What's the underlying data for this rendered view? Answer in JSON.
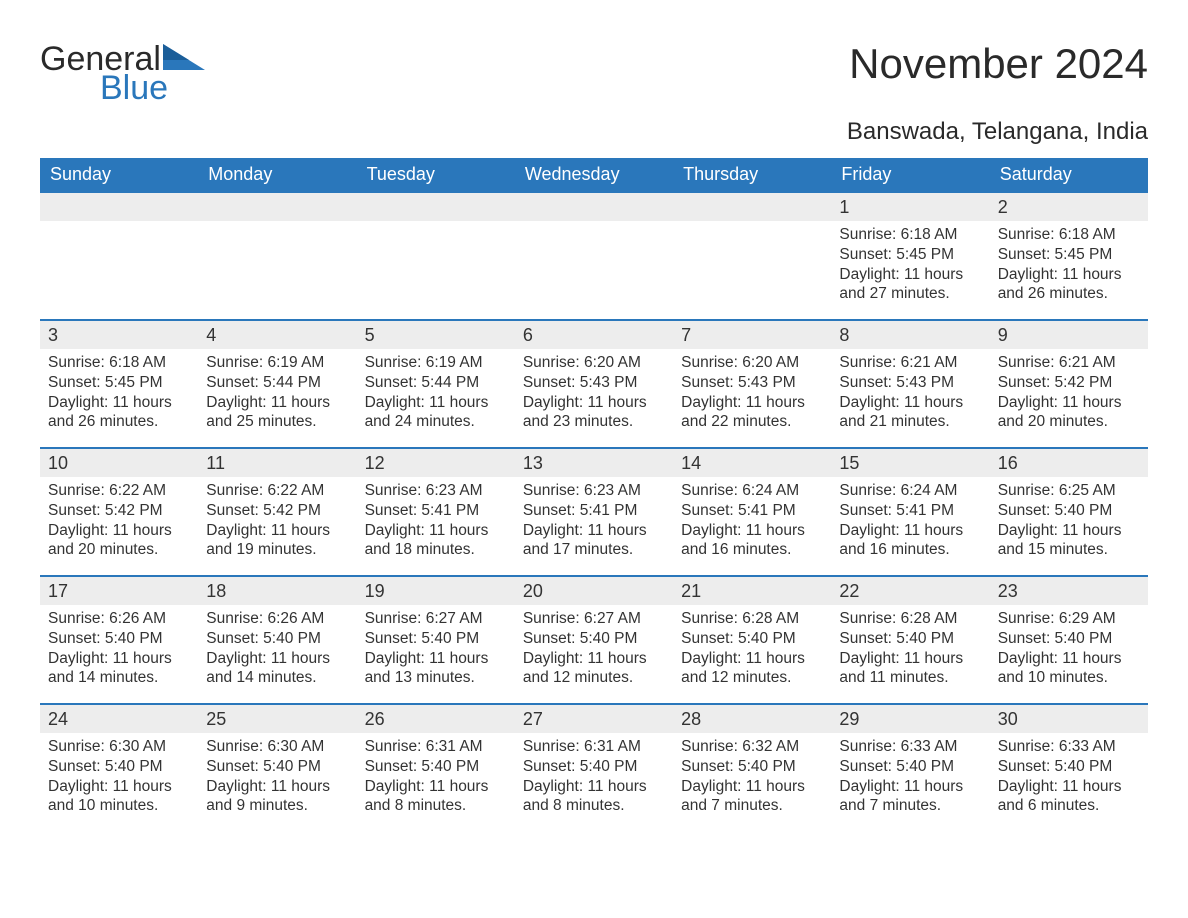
{
  "colors": {
    "brand_blue": "#2a77bb",
    "header_blue": "#2a77bb",
    "daynum_bg": "#ededed",
    "row_border_blue": "#2a77bb",
    "text": "#333333",
    "background": "#ffffff"
  },
  "logo": {
    "word1": "General",
    "word2": "Blue"
  },
  "title": "November 2024",
  "location": "Banswada, Telangana, India",
  "day_headers": [
    "Sunday",
    "Monday",
    "Tuesday",
    "Wednesday",
    "Thursday",
    "Friday",
    "Saturday"
  ],
  "weeks": [
    [
      null,
      null,
      null,
      null,
      null,
      {
        "n": "1",
        "sunrise": "Sunrise: 6:18 AM",
        "sunset": "Sunset: 5:45 PM",
        "daylight": "Daylight: 11 hours and 27 minutes."
      },
      {
        "n": "2",
        "sunrise": "Sunrise: 6:18 AM",
        "sunset": "Sunset: 5:45 PM",
        "daylight": "Daylight: 11 hours and 26 minutes."
      }
    ],
    [
      {
        "n": "3",
        "sunrise": "Sunrise: 6:18 AM",
        "sunset": "Sunset: 5:45 PM",
        "daylight": "Daylight: 11 hours and 26 minutes."
      },
      {
        "n": "4",
        "sunrise": "Sunrise: 6:19 AM",
        "sunset": "Sunset: 5:44 PM",
        "daylight": "Daylight: 11 hours and 25 minutes."
      },
      {
        "n": "5",
        "sunrise": "Sunrise: 6:19 AM",
        "sunset": "Sunset: 5:44 PM",
        "daylight": "Daylight: 11 hours and 24 minutes."
      },
      {
        "n": "6",
        "sunrise": "Sunrise: 6:20 AM",
        "sunset": "Sunset: 5:43 PM",
        "daylight": "Daylight: 11 hours and 23 minutes."
      },
      {
        "n": "7",
        "sunrise": "Sunrise: 6:20 AM",
        "sunset": "Sunset: 5:43 PM",
        "daylight": "Daylight: 11 hours and 22 minutes."
      },
      {
        "n": "8",
        "sunrise": "Sunrise: 6:21 AM",
        "sunset": "Sunset: 5:43 PM",
        "daylight": "Daylight: 11 hours and 21 minutes."
      },
      {
        "n": "9",
        "sunrise": "Sunrise: 6:21 AM",
        "sunset": "Sunset: 5:42 PM",
        "daylight": "Daylight: 11 hours and 20 minutes."
      }
    ],
    [
      {
        "n": "10",
        "sunrise": "Sunrise: 6:22 AM",
        "sunset": "Sunset: 5:42 PM",
        "daylight": "Daylight: 11 hours and 20 minutes."
      },
      {
        "n": "11",
        "sunrise": "Sunrise: 6:22 AM",
        "sunset": "Sunset: 5:42 PM",
        "daylight": "Daylight: 11 hours and 19 minutes."
      },
      {
        "n": "12",
        "sunrise": "Sunrise: 6:23 AM",
        "sunset": "Sunset: 5:41 PM",
        "daylight": "Daylight: 11 hours and 18 minutes."
      },
      {
        "n": "13",
        "sunrise": "Sunrise: 6:23 AM",
        "sunset": "Sunset: 5:41 PM",
        "daylight": "Daylight: 11 hours and 17 minutes."
      },
      {
        "n": "14",
        "sunrise": "Sunrise: 6:24 AM",
        "sunset": "Sunset: 5:41 PM",
        "daylight": "Daylight: 11 hours and 16 minutes."
      },
      {
        "n": "15",
        "sunrise": "Sunrise: 6:24 AM",
        "sunset": "Sunset: 5:41 PM",
        "daylight": "Daylight: 11 hours and 16 minutes."
      },
      {
        "n": "16",
        "sunrise": "Sunrise: 6:25 AM",
        "sunset": "Sunset: 5:40 PM",
        "daylight": "Daylight: 11 hours and 15 minutes."
      }
    ],
    [
      {
        "n": "17",
        "sunrise": "Sunrise: 6:26 AM",
        "sunset": "Sunset: 5:40 PM",
        "daylight": "Daylight: 11 hours and 14 minutes."
      },
      {
        "n": "18",
        "sunrise": "Sunrise: 6:26 AM",
        "sunset": "Sunset: 5:40 PM",
        "daylight": "Daylight: 11 hours and 14 minutes."
      },
      {
        "n": "19",
        "sunrise": "Sunrise: 6:27 AM",
        "sunset": "Sunset: 5:40 PM",
        "daylight": "Daylight: 11 hours and 13 minutes."
      },
      {
        "n": "20",
        "sunrise": "Sunrise: 6:27 AM",
        "sunset": "Sunset: 5:40 PM",
        "daylight": "Daylight: 11 hours and 12 minutes."
      },
      {
        "n": "21",
        "sunrise": "Sunrise: 6:28 AM",
        "sunset": "Sunset: 5:40 PM",
        "daylight": "Daylight: 11 hours and 12 minutes."
      },
      {
        "n": "22",
        "sunrise": "Sunrise: 6:28 AM",
        "sunset": "Sunset: 5:40 PM",
        "daylight": "Daylight: 11 hours and 11 minutes."
      },
      {
        "n": "23",
        "sunrise": "Sunrise: 6:29 AM",
        "sunset": "Sunset: 5:40 PM",
        "daylight": "Daylight: 11 hours and 10 minutes."
      }
    ],
    [
      {
        "n": "24",
        "sunrise": "Sunrise: 6:30 AM",
        "sunset": "Sunset: 5:40 PM",
        "daylight": "Daylight: 11 hours and 10 minutes."
      },
      {
        "n": "25",
        "sunrise": "Sunrise: 6:30 AM",
        "sunset": "Sunset: 5:40 PM",
        "daylight": "Daylight: 11 hours and 9 minutes."
      },
      {
        "n": "26",
        "sunrise": "Sunrise: 6:31 AM",
        "sunset": "Sunset: 5:40 PM",
        "daylight": "Daylight: 11 hours and 8 minutes."
      },
      {
        "n": "27",
        "sunrise": "Sunrise: 6:31 AM",
        "sunset": "Sunset: 5:40 PM",
        "daylight": "Daylight: 11 hours and 8 minutes."
      },
      {
        "n": "28",
        "sunrise": "Sunrise: 6:32 AM",
        "sunset": "Sunset: 5:40 PM",
        "daylight": "Daylight: 11 hours and 7 minutes."
      },
      {
        "n": "29",
        "sunrise": "Sunrise: 6:33 AM",
        "sunset": "Sunset: 5:40 PM",
        "daylight": "Daylight: 11 hours and 7 minutes."
      },
      {
        "n": "30",
        "sunrise": "Sunrise: 6:33 AM",
        "sunset": "Sunset: 5:40 PM",
        "daylight": "Daylight: 11 hours and 6 minutes."
      }
    ]
  ]
}
